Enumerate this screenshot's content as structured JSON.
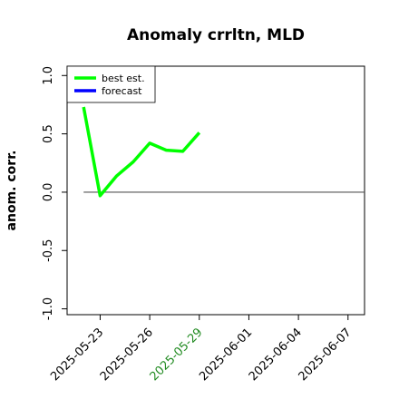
{
  "chart_data": {
    "type": "line",
    "title": "Anomaly crrltn, MLD",
    "ylabel": "anom. corr.",
    "xlabel": "",
    "ylim": [
      -1.05,
      1.08
    ],
    "xlim": [
      "2025-05-21",
      "2025-06-08"
    ],
    "yticks": [
      -1.0,
      -0.5,
      0.0,
      0.5,
      1.0
    ],
    "ytick_labels": [
      "-1.0",
      "-0.5",
      "0.0",
      "0.5",
      "1.0"
    ],
    "xticks": [
      "2025-05-23",
      "2025-05-26",
      "2025-05-29",
      "2025-06-01",
      "2025-06-04",
      "2025-06-07"
    ],
    "highlight_xtick": "2025-05-29",
    "highlight_color": "#228b22",
    "reference_line": {
      "y": 0.0,
      "from": "2025-05-22",
      "to": "2025-06-08",
      "color": "#555555"
    },
    "legend": {
      "position": "top-left"
    },
    "series": [
      {
        "name": "best est.",
        "color": "#00ff00",
        "x": [
          "2025-05-22",
          "2025-05-23",
          "2025-05-24",
          "2025-05-25",
          "2025-05-26",
          "2025-05-27",
          "2025-05-28",
          "2025-05-29"
        ],
        "y": [
          0.73,
          -0.03,
          0.14,
          0.26,
          0.42,
          0.36,
          0.35,
          0.51
        ]
      },
      {
        "name": "forecast",
        "color": "#0000ff",
        "x": [],
        "y": []
      }
    ]
  }
}
